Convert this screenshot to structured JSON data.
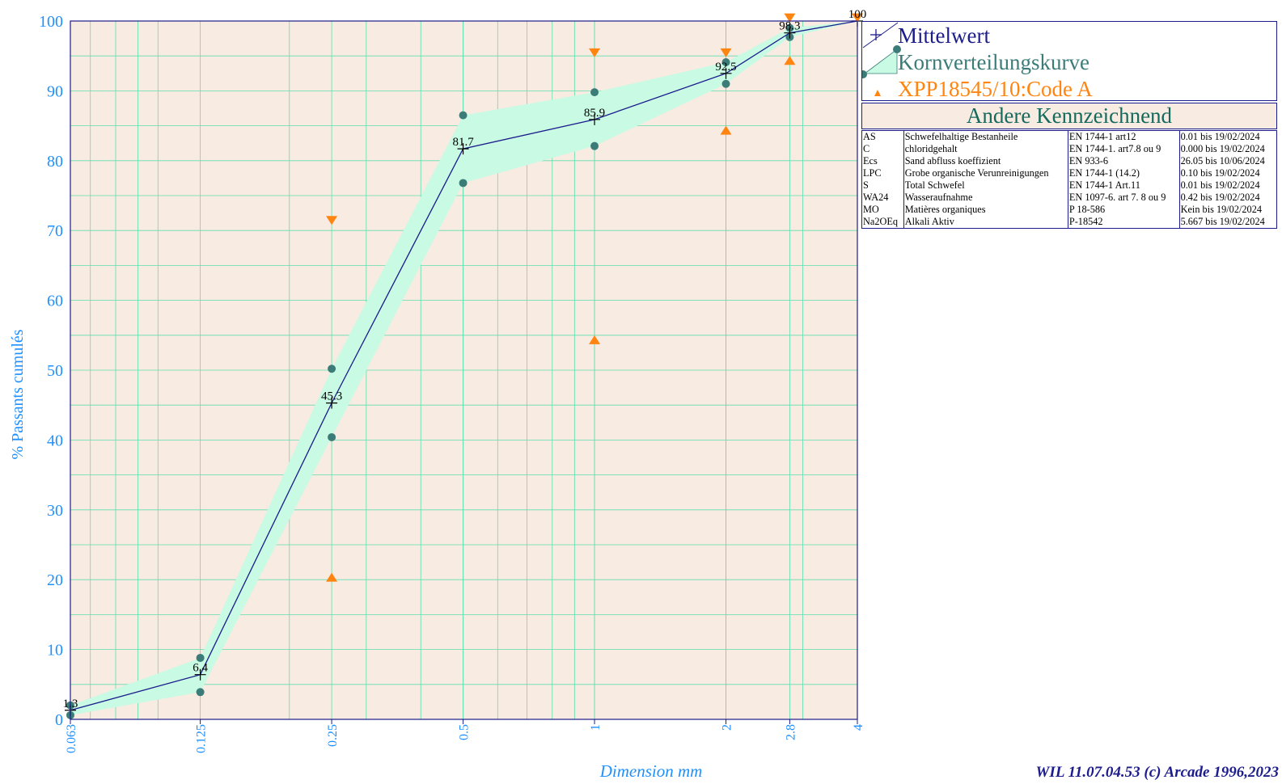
{
  "chart_data": {
    "type": "line",
    "xscale": "log",
    "x_ticks": [
      "0.063",
      "0.125",
      "0.25",
      "0.5",
      "1",
      "2",
      "2.8",
      "4"
    ],
    "x_values": [
      0.063,
      0.125,
      0.25,
      0.5,
      1,
      2,
      2.8,
      4
    ],
    "xlim": [
      0.063,
      4
    ],
    "ylim": [
      0,
      100
    ],
    "y_ticks": [
      "0",
      "10",
      "20",
      "30",
      "40",
      "50",
      "60",
      "70",
      "80",
      "90",
      "100"
    ],
    "xlabel": "Dimension mm",
    "ylabel": "% Passants cumulés",
    "grid": true,
    "legend_position": "top-right",
    "series": [
      {
        "name": "Mittelwert",
        "x": [
          0.063,
          0.125,
          0.25,
          0.5,
          1,
          2,
          2.8,
          4
        ],
        "y": [
          1.3,
          6.4,
          45.3,
          81.7,
          85.9,
          92.5,
          98.3,
          100
        ],
        "labels": [
          "1.3",
          "6.4",
          "45.3",
          "81.7",
          "85.9",
          "92.5",
          "98.3",
          "100"
        ]
      },
      {
        "name": "Kornverteilungskurve",
        "x": [
          0.063,
          0.125,
          0.25,
          0.5,
          1,
          2,
          2.8,
          4
        ],
        "upper": [
          2.0,
          8.8,
          50.2,
          86.5,
          89.8,
          94.1,
          99.0,
          100
        ],
        "lower": [
          0.6,
          3.9,
          40.4,
          76.8,
          82.1,
          91.0,
          97.7,
          100
        ]
      },
      {
        "name": "XPP18545/10:Code A",
        "x": [
          0.25,
          1,
          2,
          2.8,
          4
        ],
        "max": [
          71.5,
          95.5,
          95.5,
          100.5,
          100.5
        ],
        "min": [
          20.3,
          54.3,
          84.3,
          94.3,
          null
        ]
      }
    ],
    "colors": {
      "mean_line": "#1c1c8c",
      "band_fill": "#c8fae4",
      "band_points": "#3c7c78",
      "spec": "#ff8410",
      "plot_bg": "#f8ebe2",
      "grid": "#5ee0ae",
      "axis_text": "#1e90ff"
    }
  },
  "legend": {
    "mean": "Mittelwert",
    "curve": "Kornverteilungskurve",
    "spec": "XPP18545/10:Code A"
  },
  "info": {
    "title": "Andere Kennzeichnend",
    "rows": [
      {
        "code": "AS",
        "name": "Schwefelhaltige Bestanheile",
        "norm": "EN 1744-1 art12",
        "value": "0.01  bis 19/02/2024"
      },
      {
        "code": "C",
        "name": "chloridgehalt",
        "norm": "EN 1744-1. art7.8 ou 9",
        "value": "0.000  bis 19/02/2024"
      },
      {
        "code": "Ecs",
        "name": "Sand abfluss koeffizient",
        "norm": "EN 933-6",
        "value": "26.05  bis 10/06/2024"
      },
      {
        "code": "LPC",
        "name": "Grobe organische Verunreinigungen",
        "norm": "EN 1744-1 (14.2)",
        "value": "0.10  bis 19/02/2024"
      },
      {
        "code": "S",
        "name": "Total Schwefel",
        "norm": "EN 1744-1 Art.11",
        "value": "0.01  bis 19/02/2024"
      },
      {
        "code": "WA24",
        "name": "Wasseraufnahme",
        "norm": "EN 1097-6. art 7. 8 ou 9",
        "value": "0.42  bis 19/02/2024"
      },
      {
        "code": "MO",
        "name": "Matières organiques",
        "norm": "P 18-586",
        "value": "Kein  bis 19/02/2024"
      },
      {
        "code": "Na2OEq",
        "name": "Alkali Aktiv",
        "norm": "P-18542",
        "value": "5.667  bis 19/02/2024"
      }
    ]
  },
  "footer": "WIL 11.07.04.53 (c) Arcade 1996,2023"
}
